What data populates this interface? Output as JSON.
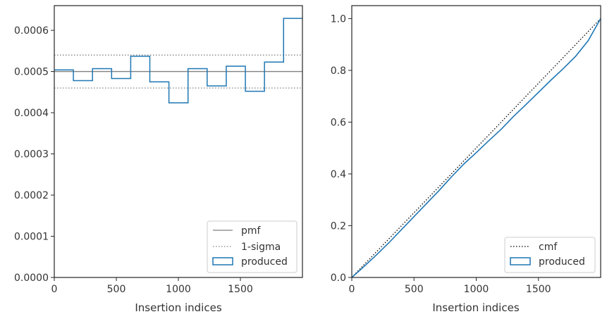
{
  "chart_data": [
    {
      "type": "line",
      "subtype": "step-histogram",
      "title": "",
      "xlabel": "Insertion indices",
      "ylabel": "",
      "xlim": [
        0,
        2000
      ],
      "ylim": [
        0,
        0.00066
      ],
      "xticks": [
        0,
        500,
        1000,
        1500
      ],
      "yticks": [
        0.0,
        0.0001,
        0.0002,
        0.0003,
        0.0004,
        0.0005,
        0.0006
      ],
      "ytick_labels": [
        "0.0000",
        "0.0001",
        "0.0002",
        "0.0003",
        "0.0004",
        "0.0005",
        "0.0006"
      ],
      "grid": false,
      "legend_position": "bottom-right",
      "legend": [
        "pmf",
        "1-sigma",
        "produced"
      ],
      "pmf_value": 0.0005,
      "sigma_band": [
        0.00046,
        0.00054
      ],
      "bin_edges": [
        0,
        154,
        308,
        462,
        616,
        770,
        924,
        1078,
        1232,
        1386,
        1540,
        1694,
        1848,
        2000
      ],
      "produced": [
        0.000504,
        0.000478,
        0.000507,
        0.000483,
        0.000537,
        0.000475,
        0.000424,
        0.000507,
        0.000465,
        0.000513,
        0.000452,
        0.000523,
        0.000629
      ],
      "colors": {
        "produced": "#1f77b4",
        "pmf": "#808080",
        "sigma": "#808080"
      }
    },
    {
      "type": "line",
      "title": "",
      "xlabel": "Insertion indices",
      "ylabel": "",
      "xlim": [
        0,
        2000
      ],
      "ylim": [
        0,
        1.05
      ],
      "xticks": [
        0,
        500,
        1000,
        1500
      ],
      "yticks": [
        0.0,
        0.2,
        0.4,
        0.6,
        0.8,
        1.0
      ],
      "ytick_labels": [
        "0.0",
        "0.2",
        "0.4",
        "0.6",
        "0.8",
        "1.0"
      ],
      "grid": false,
      "legend_position": "bottom-right",
      "legend": [
        "cmf",
        "produced"
      ],
      "cmf": {
        "x": [
          0,
          2000
        ],
        "y": [
          0,
          1
        ]
      },
      "produced": {
        "x": [
          0,
          100,
          200,
          300,
          400,
          500,
          600,
          700,
          800,
          900,
          1000,
          1100,
          1200,
          1300,
          1400,
          1500,
          1600,
          1700,
          1800,
          1900,
          2000
        ],
        "y": [
          0,
          0.043,
          0.088,
          0.135,
          0.185,
          0.235,
          0.285,
          0.335,
          0.388,
          0.438,
          0.482,
          0.528,
          0.572,
          0.622,
          0.668,
          0.715,
          0.762,
          0.807,
          0.855,
          0.915,
          1.0
        ]
      },
      "colors": {
        "produced": "#1f77b4",
        "cmf": "#000000"
      }
    }
  ]
}
